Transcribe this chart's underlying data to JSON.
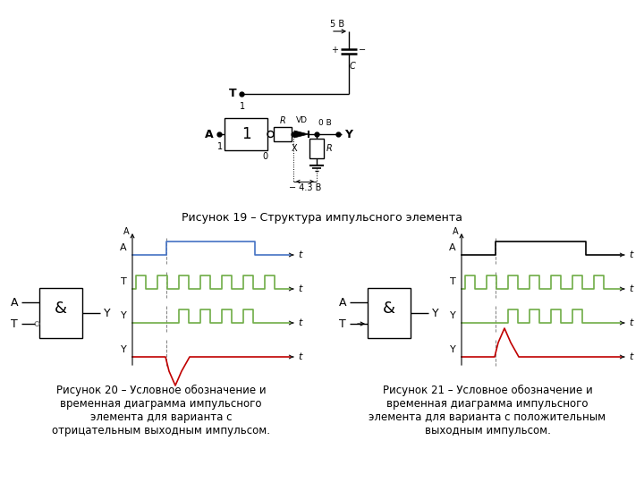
{
  "fig_width": 7.2,
  "fig_height": 5.4,
  "bg_color": "#ffffff",
  "caption1": "Рисунок 19 – Структура импульсного элемента",
  "caption20": "Рисунок 20 – Условное обозначение и\nвременная диаграмма импульсного\nэлемента для варианта с\nотрицательным выходным импульсом.",
  "caption21": "Рисунок 21 – Условное обозначение и\nвременная диаграмма импульсного\nэлемента для варианта с положительным\nвыходным импульсом.",
  "line_color": "#000000",
  "blue_color": "#4472c4",
  "green_color": "#70ad47",
  "red_color": "#c00000",
  "gray_color": "#808080"
}
